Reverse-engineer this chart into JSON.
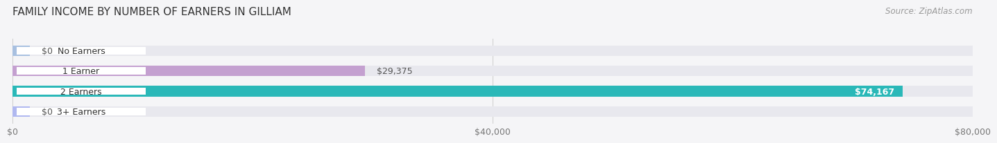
{
  "title": "FAMILY INCOME BY NUMBER OF EARNERS IN GILLIAM",
  "source": "Source: ZipAtlas.com",
  "categories": [
    "No Earners",
    "1 Earner",
    "2 Earners",
    "3+ Earners"
  ],
  "values": [
    0,
    29375,
    74167,
    0
  ],
  "labels": [
    "$0",
    "$29,375",
    "$74,167",
    "$0"
  ],
  "bar_colors": [
    "#a8c0e0",
    "#c4a0d0",
    "#2ab8b8",
    "#b0b8f0"
  ],
  "bar_bg_color": "#e8e8ee",
  "xlim": [
    0,
    80000
  ],
  "xticks": [
    0,
    40000,
    80000
  ],
  "xticklabels": [
    "$0",
    "$40,000",
    "$80,000"
  ],
  "bar_height": 0.52,
  "bg_color": "#f5f5f7",
  "title_fontsize": 11,
  "tick_fontsize": 9,
  "label_fontsize": 9,
  "source_fontsize": 8.5,
  "pill_color": "white",
  "pill_text_color": "#333333",
  "value_label_color": "#555555",
  "value_label_color_inside": "white"
}
